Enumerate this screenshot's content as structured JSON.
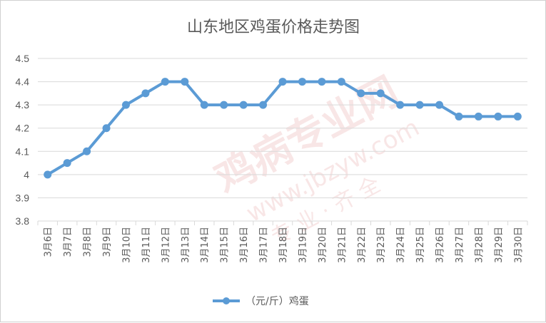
{
  "chart_data": {
    "type": "line",
    "title": "山东地区鸡蛋价格走势图",
    "xlabel": "",
    "ylabel": "",
    "ylim": [
      3.8,
      4.5
    ],
    "yticks": [
      "4.5",
      "4.4",
      "4.3",
      "4.2",
      "4.1",
      "4",
      "3.9",
      "3.8"
    ],
    "grid": true,
    "legend_position": "bottom",
    "categories": [
      "3月6日",
      "3月7日",
      "3月8日",
      "3月9日",
      "3月10日",
      "3月11日",
      "3月12日",
      "3月13日",
      "3月14日",
      "3月15日",
      "3月16日",
      "3月17日",
      "3月18日",
      "3月19日",
      "3月20日",
      "3月21日",
      "3月22日",
      "3月23日",
      "3月24日",
      "3月25日",
      "3月26日",
      "3月27日",
      "3月28日",
      "3月29日",
      "3月30日"
    ],
    "series": [
      {
        "name": "（元/斤）鸡蛋",
        "color": "#5b9bd5",
        "values": [
          4.0,
          4.05,
          4.1,
          4.2,
          4.3,
          4.35,
          4.4,
          4.4,
          4.3,
          4.3,
          4.3,
          4.3,
          4.4,
          4.4,
          4.4,
          4.4,
          4.35,
          4.35,
          4.3,
          4.3,
          4.3,
          4.25,
          4.25,
          4.25,
          4.25
        ]
      }
    ]
  },
  "watermark": {
    "line1": "鸡病专业网",
    "line2": "www.jbzyw.com",
    "line3": "专 业 · 齐 全"
  },
  "colors": {
    "line": "#5b9bd5",
    "grid": "#d9d9d9",
    "text": "#595959"
  }
}
